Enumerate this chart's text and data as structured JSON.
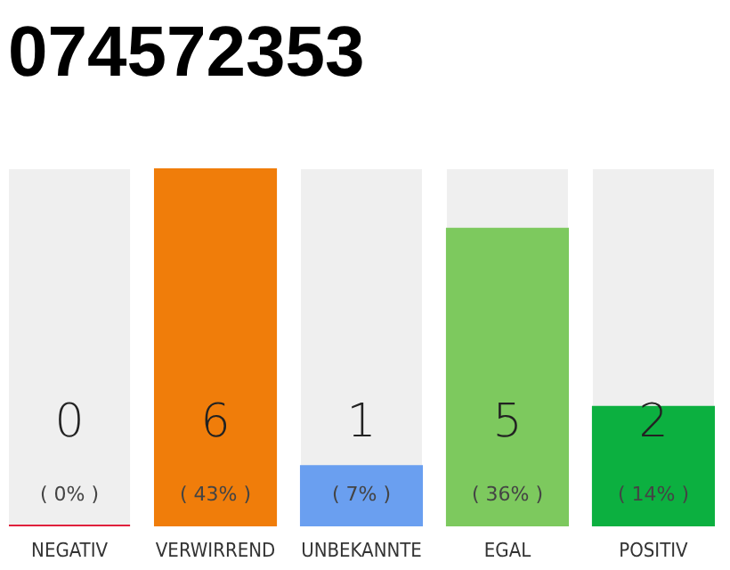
{
  "chart_data": {
    "type": "bar",
    "title": "074572353",
    "categories": [
      "NEGATIV",
      "VERWIRREND",
      "UNBEKANNTE",
      "EGAL",
      "POSITIV"
    ],
    "values": [
      0,
      6,
      1,
      5,
      2
    ],
    "colors": [
      "#e0203c",
      "#f07d0a",
      "#6a9ff0",
      "#7dc95e",
      "#0cb040"
    ],
    "data_labels": true,
    "tick_labels": "x",
    "annotations": [
      "( 0% )",
      "( 43% )",
      "( 7% )",
      "( 36% )",
      "( 14% )"
    ]
  }
}
